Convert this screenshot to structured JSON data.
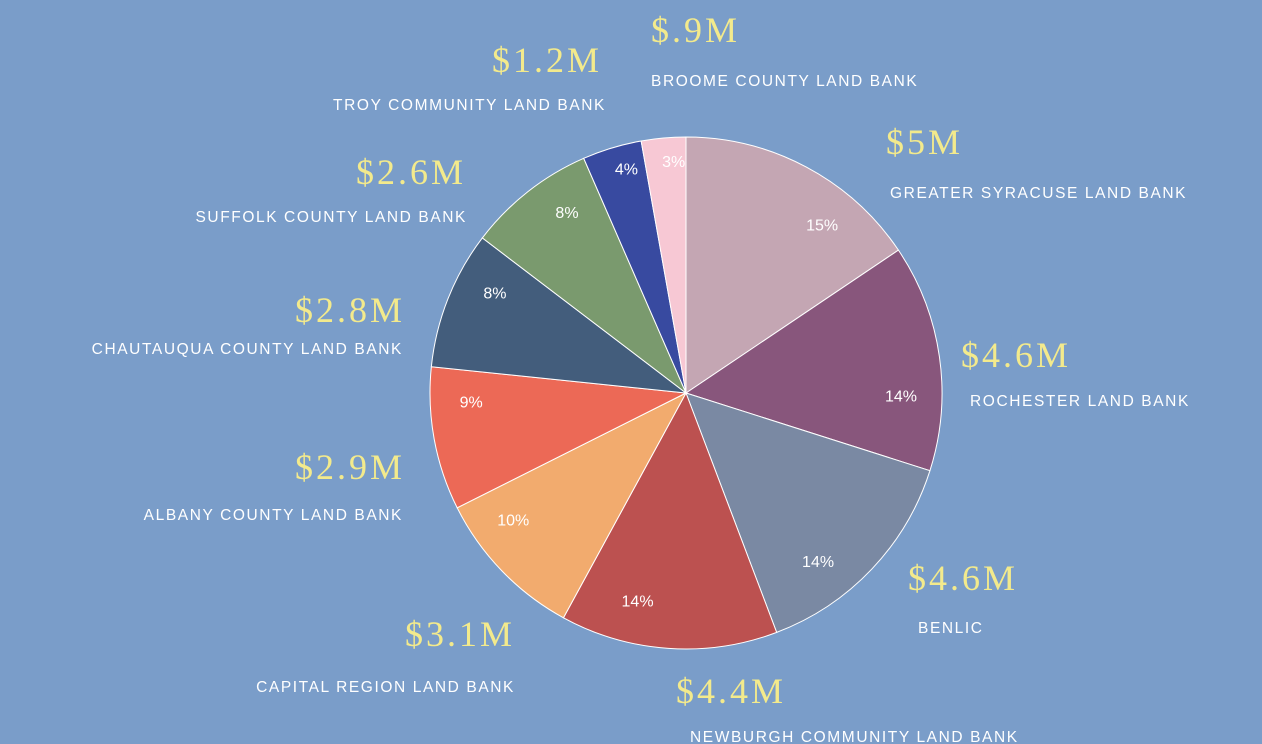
{
  "chart_data": {
    "type": "pie",
    "categories": [
      "GREATER SYRACUSE LAND BANK",
      "ROCHESTER LAND BANK",
      "BENLIC",
      "NEWBURGH COMMUNITY LAND BANK",
      "CAPITAL REGION LAND BANK",
      "ALBANY COUNTY LAND BANK",
      "CHAUTAUQUA COUNTY LAND BANK",
      "SUFFOLK COUNTY LAND BANK",
      "TROY COMMUNITY LAND BANK",
      "BROOME COUNTY LAND BANK"
    ],
    "values": [
      5000000,
      4600000,
      4600000,
      4400000,
      3100000,
      2900000,
      2800000,
      2600000,
      1200000,
      900000
    ],
    "value_labels": [
      "$5M",
      "$4.6M",
      "$4.6M",
      "$4.4M",
      "$3.1M",
      "$2.9M",
      "$2.8M",
      "$2.6M",
      "$1.2M",
      "$.9M"
    ],
    "shares": [
      15,
      14,
      14,
      14,
      10,
      9,
      8,
      8,
      4,
      3
    ],
    "share_labels": [
      "15%",
      "14%",
      "14%",
      "14%",
      "10%",
      "9%",
      "8%",
      "8%",
      "4%",
      "3%"
    ],
    "colors": [
      "#c4a6b3",
      "#88567c",
      "#7a89a3",
      "#bc5150",
      "#f2ab6e",
      "#ec6956",
      "#435d7c",
      "#7a9a6e",
      "#384aa0",
      "#f7c8d4"
    ]
  }
}
